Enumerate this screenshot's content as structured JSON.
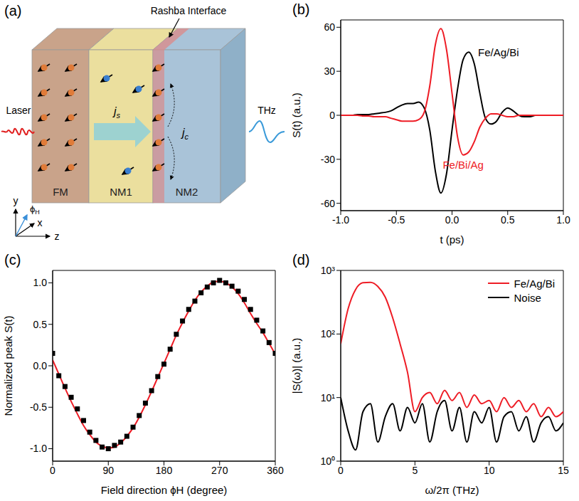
{
  "diagram": {
    "panel": "(a)",
    "laser": "Laser",
    "output": "THz",
    "interface": "Rashba Interface",
    "layers": [
      "FM",
      "NM1",
      "NM2"
    ],
    "spin_current": {
      "symbol": "j",
      "sub": "s"
    },
    "charge_current": {
      "symbol": "j",
      "sub": "c"
    },
    "axes": [
      "x",
      "y",
      "z"
    ],
    "field_angle": {
      "symbol": "ϕ",
      "sub": "H"
    }
  },
  "chart_data": [
    {
      "type": "line",
      "panel": "(b)",
      "xlabel": "t (ps)",
      "ylabel": "S(t) (a.u.)",
      "xlim": [
        -1,
        1
      ],
      "xticks": [
        {
          "value": -1,
          "label": "-1.0"
        },
        {
          "value": -0.5,
          "label": "-0.5"
        },
        {
          "value": 0,
          "label": "0.0"
        },
        {
          "value": 0.5,
          "label": "0.5"
        },
        {
          "value": 1,
          "label": "1.0"
        }
      ],
      "ylim": [
        -65,
        65
      ],
      "yticks": [
        -60,
        -30,
        0,
        30,
        60
      ],
      "x": [
        -1.0,
        -0.95,
        -0.9,
        -0.85,
        -0.8,
        -0.75,
        -0.7,
        -0.65,
        -0.6,
        -0.55,
        -0.5,
        -0.45,
        -0.4,
        -0.35,
        -0.3,
        -0.25,
        -0.2,
        -0.15,
        -0.1,
        -0.05,
        0,
        0.05,
        0.1,
        0.15,
        0.2,
        0.25,
        0.3,
        0.35,
        0.4,
        0.45,
        0.5,
        0.55,
        0.6,
        0.65,
        0.7,
        0.75,
        0.8,
        0.85,
        0.9,
        0.95,
        1.0
      ],
      "series": [
        {
          "name": "Fe/Ag/Bi",
          "color": "#000000",
          "values": [
            0,
            0,
            0,
            0.5,
            0.5,
            0.5,
            1,
            1.5,
            2,
            3,
            5,
            7,
            8,
            8,
            9,
            5,
            -10,
            -38,
            -53,
            -40,
            -10,
            18,
            38,
            43,
            35,
            15,
            -2,
            -6,
            -4,
            2,
            5,
            3,
            0,
            -1,
            -1,
            0,
            0,
            0,
            0,
            0,
            0
          ]
        },
        {
          "name": "Fe/Bi/Ag",
          "color": "#ee1c25",
          "values": [
            0,
            0,
            0,
            0,
            -0.5,
            -0.5,
            -1,
            -1,
            -1,
            -2,
            -3,
            -4,
            -4,
            -4,
            -3,
            2,
            20,
            48,
            59,
            45,
            15,
            -15,
            -27,
            -25,
            -18,
            -8,
            -2,
            1,
            1,
            0,
            -1,
            -1,
            0,
            0,
            0,
            0,
            0,
            0,
            0,
            0,
            0
          ]
        }
      ]
    },
    {
      "type": "scatter",
      "panel": "(c)",
      "xlabel": "Field direction ϕH (degree)",
      "ylabel": "Normalized peak S(t)",
      "xlim": [
        0,
        360
      ],
      "xticks": [
        0,
        90,
        180,
        270,
        360
      ],
      "ylim": [
        -1.15,
        1.15
      ],
      "yticks": [
        {
          "value": -1,
          "label": "-1.0"
        },
        {
          "value": -0.5,
          "label": "-0.5"
        },
        {
          "value": 0,
          "label": "0.0"
        },
        {
          "value": 0.5,
          "label": "0.5"
        },
        {
          "value": 1,
          "label": "1.0"
        }
      ],
      "x": [
        0,
        10,
        20,
        30,
        40,
        50,
        60,
        70,
        80,
        90,
        100,
        110,
        120,
        130,
        140,
        150,
        160,
        170,
        180,
        190,
        200,
        210,
        220,
        230,
        240,
        250,
        260,
        270,
        280,
        290,
        300,
        310,
        320,
        330,
        340,
        350,
        360
      ],
      "series": [
        {
          "type": "scatter",
          "marker": "square",
          "color": "#000000",
          "values": [
            0.15,
            -0.12,
            -0.25,
            -0.38,
            -0.52,
            -0.66,
            -0.8,
            -0.9,
            -0.98,
            -1.0,
            -0.96,
            -0.92,
            -0.85,
            -0.74,
            -0.6,
            -0.45,
            -0.3,
            -0.13,
            0.02,
            0.2,
            0.38,
            0.54,
            0.68,
            0.78,
            0.88,
            0.95,
            1.0,
            1.03,
            1.0,
            0.96,
            0.9,
            0.8,
            0.68,
            0.55,
            0.42,
            0.28,
            0.15
          ]
        },
        {
          "type": "line",
          "color": "#ee1c25",
          "values": [
            0.07,
            -0.1,
            -0.27,
            -0.43,
            -0.58,
            -0.72,
            -0.83,
            -0.92,
            -0.97,
            -0.99,
            -0.98,
            -0.93,
            -0.85,
            -0.75,
            -0.62,
            -0.47,
            -0.31,
            -0.14,
            0.03,
            0.2,
            0.37,
            0.52,
            0.66,
            0.79,
            0.89,
            0.96,
            1.01,
            1.02,
            1.0,
            0.95,
            0.87,
            0.76,
            0.63,
            0.51,
            0.4,
            0.27,
            0.14
          ]
        }
      ]
    },
    {
      "type": "line",
      "panel": "(d)",
      "xlabel": "ω/2π (THz)",
      "ylabel": "|S(ω)| (a.u.)",
      "log": "y",
      "legend": "upper right",
      "xlim": [
        0,
        15
      ],
      "xticks": [
        0,
        5,
        10,
        15
      ],
      "ylim": [
        1,
        1000
      ],
      "yticks": [
        {
          "value": 1,
          "label": "10⁰"
        },
        {
          "value": 10,
          "label": "10¹"
        },
        {
          "value": 100,
          "label": "10²"
        },
        {
          "value": 1000,
          "label": "10³"
        }
      ],
      "x": [
        0,
        0.5,
        1,
        1.5,
        2,
        2.5,
        3,
        3.5,
        4,
        4.5,
        5,
        5.5,
        6,
        6.5,
        7,
        7.5,
        8,
        8.5,
        9,
        9.5,
        10,
        10.5,
        11,
        11.5,
        12,
        12.5,
        13,
        13.5,
        14,
        14.5,
        15
      ],
      "series": [
        {
          "name": "Fe/Ag/Bi",
          "color": "#ee1c25",
          "values": [
            70,
            250,
            500,
            640,
            650,
            560,
            380,
            180,
            70,
            25,
            6,
            10,
            12,
            8,
            13,
            9,
            12,
            7,
            11,
            8,
            9,
            6,
            10,
            7,
            9,
            6,
            8,
            5,
            7,
            5,
            6
          ]
        },
        {
          "name": "Noise",
          "color": "#000000",
          "values": [
            10,
            3,
            1.5,
            6,
            8,
            2,
            5,
            8,
            3,
            7,
            4,
            8,
            2,
            6,
            9,
            3,
            7,
            2,
            6,
            4,
            7,
            2,
            5,
            6,
            3,
            5,
            2,
            4,
            5,
            3,
            4
          ]
        }
      ]
    }
  ]
}
